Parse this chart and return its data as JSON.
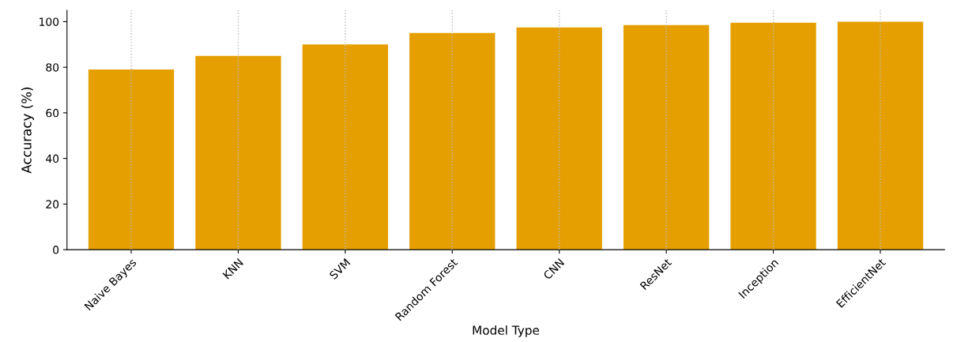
{
  "chart_data": {
    "type": "bar",
    "xlabel": "Model Type",
    "ylabel": "Accuracy (%)",
    "categories": [
      "Naive Bayes",
      "KNN",
      "SVM",
      "Random Forest",
      "CNN",
      "ResNet",
      "Inception",
      "EfficientNet"
    ],
    "values": [
      79,
      85,
      90,
      95,
      97.5,
      98.5,
      99.5,
      100
    ],
    "color": "#e69f00",
    "ylim": [
      0,
      105
    ],
    "yticks": [
      0,
      20,
      40,
      60,
      80,
      100
    ],
    "grid": "x"
  }
}
